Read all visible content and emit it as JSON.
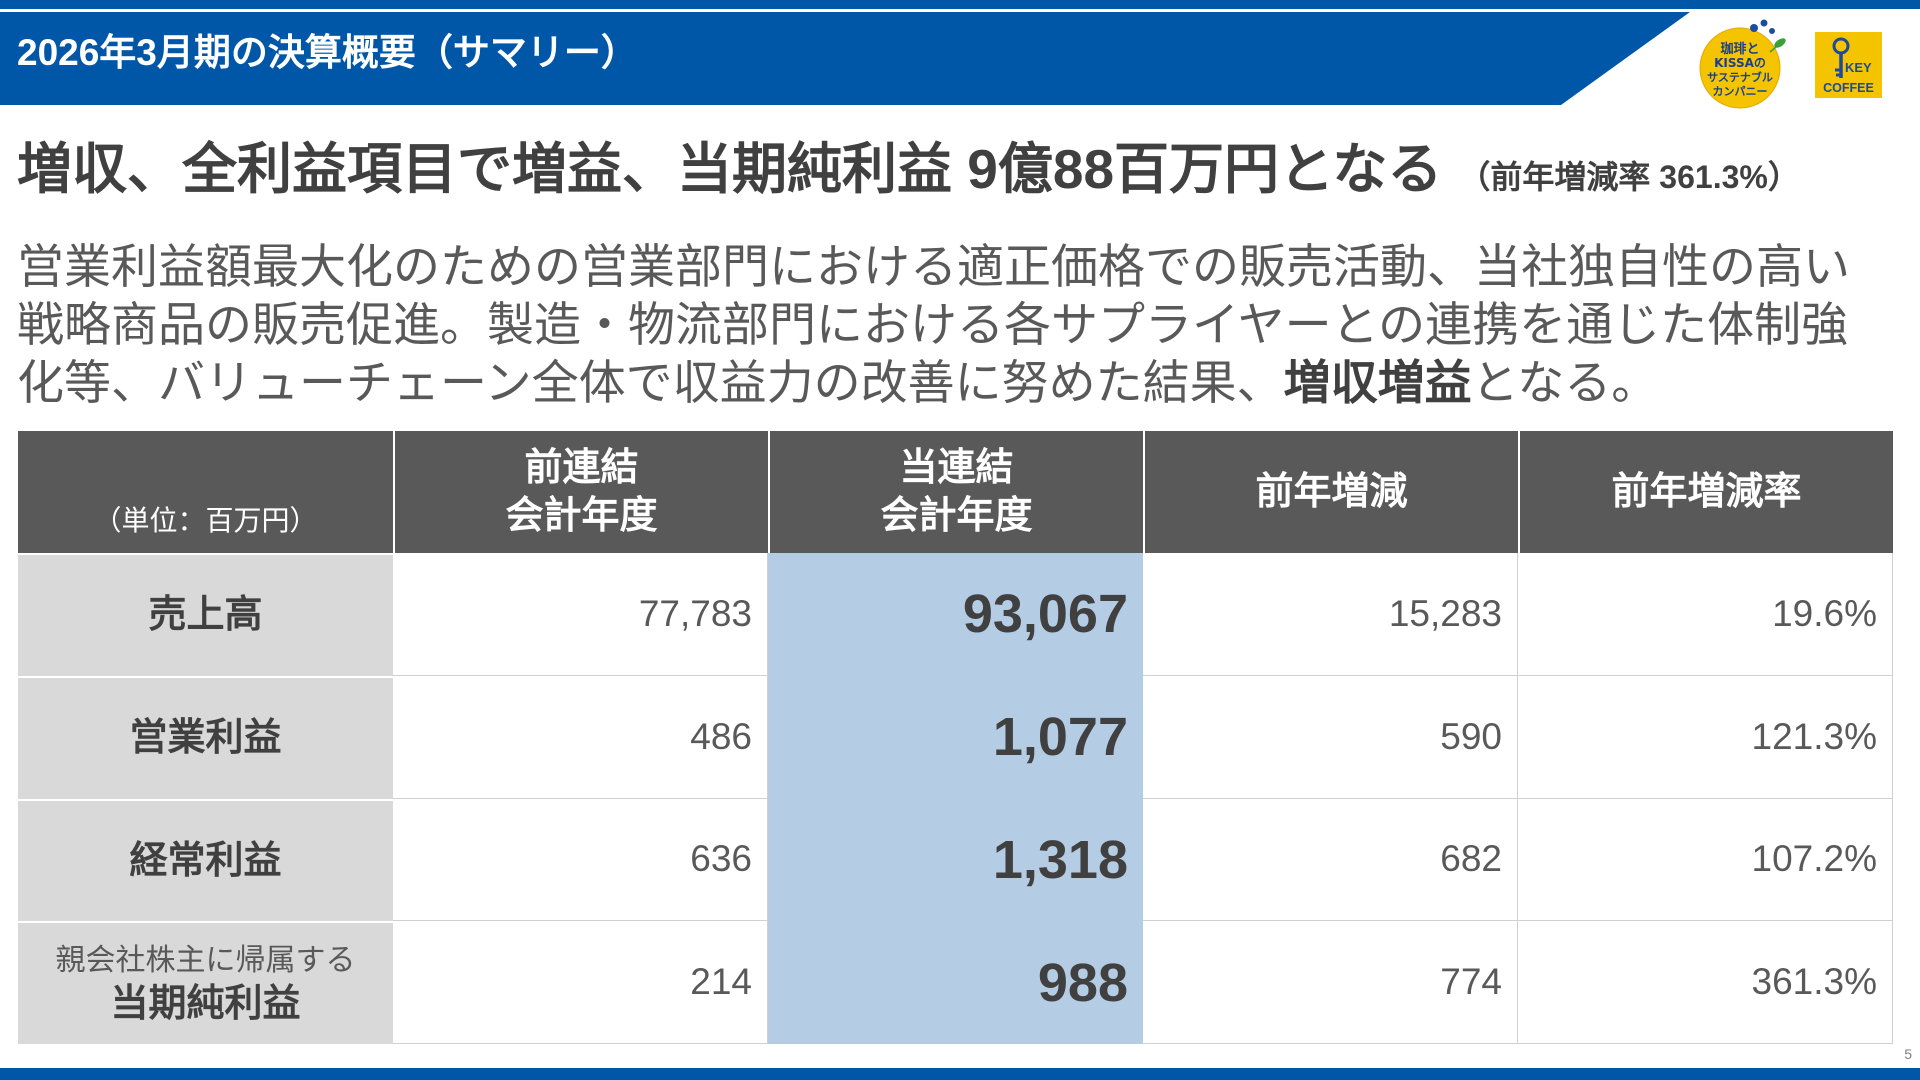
{
  "header": {
    "title": "2026年3月期の決算概要（サマリー）"
  },
  "logos": {
    "kissa": {
      "line1": "珈琲と",
      "line2": "KISSAの",
      "line3": "サステナブル",
      "line4": "カンパニー"
    },
    "key_coffee": {
      "line1": "KEY",
      "line2": "COFFEE"
    }
  },
  "headline": {
    "main": "増収、全利益項目で増益、当期純利益 9億88百万円となる",
    "sub": "（前年増減率 361.3%）"
  },
  "summary": {
    "line1": "営業利益額最大化のための営業部門における適正価格での販売活動、当社独自性の高い",
    "line2": "戦略商品の販売促進。製造・物流部門における各サプライヤーとの連携を通じた体制強",
    "line3_before": "化等、バリューチェーン全体で収益力の改善に努めた結果、",
    "line3_emphasis": "増収増益",
    "line3_after": "となる。"
  },
  "table": {
    "unit_label": "（単位：百万円）",
    "columns": [
      {
        "line1": "前連結",
        "line2": "会計年度"
      },
      {
        "line1": "当連結",
        "line2": "会計年度"
      },
      {
        "line1": "前年増減"
      },
      {
        "line1": "前年増減率"
      }
    ],
    "rows": [
      {
        "label": "売上高",
        "prev": "77,783",
        "current": "93,067",
        "change": "15,283",
        "rate": "19.6%"
      },
      {
        "label": "営業利益",
        "prev": "486",
        "current": "1,077",
        "change": "590",
        "rate": "121.3%"
      },
      {
        "label": "経常利益",
        "prev": "636",
        "current": "1,318",
        "change": "682",
        "rate": "107.2%"
      },
      {
        "label_note": "親会社株主に帰属する",
        "label": "当期純利益",
        "prev": "214",
        "current": "988",
        "change": "774",
        "rate": "361.3%"
      }
    ]
  },
  "page_number": "5",
  "colors": {
    "brand_blue": "#0057a7",
    "header_gray": "#595959",
    "label_gray": "#d9d9d9",
    "current_year_blue": "#b4cce4",
    "text_dark": "#404040",
    "text_gray": "#595959",
    "logo_yellow": "#f5c400"
  }
}
